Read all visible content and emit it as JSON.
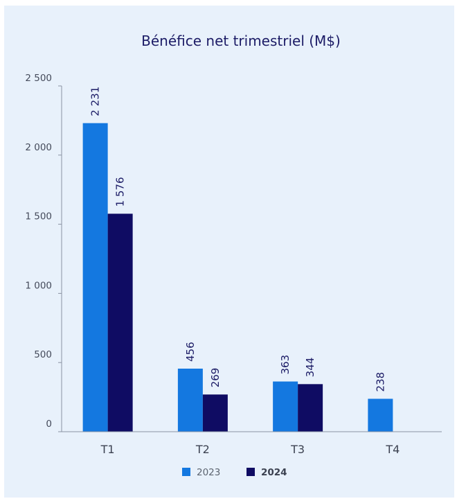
{
  "chart_data": {
    "type": "bar",
    "title": "Bénéfice net trimestriel (M$)",
    "xlabel": "",
    "ylabel": "",
    "categories": [
      "T1",
      "T2",
      "T3",
      "T4"
    ],
    "series": [
      {
        "name": "2023",
        "values": [
          2231,
          456,
          363,
          238
        ],
        "labels": [
          "2 231",
          "456",
          "363",
          "238"
        ],
        "color": "#1478e0"
      },
      {
        "name": "2024",
        "values": [
          1576,
          269,
          344,
          null
        ],
        "labels": [
          "1 576",
          "269",
          "344",
          ""
        ],
        "color": "#0f0c63"
      }
    ],
    "ylim": [
      0,
      2500
    ],
    "yticks": [
      0,
      500,
      1000,
      1500,
      2000,
      2500
    ],
    "ytick_labels": [
      "0",
      "500",
      "1 000",
      "1 500",
      "2 000",
      "2 500"
    ],
    "grid": false,
    "legend_position": "bottom-center"
  }
}
